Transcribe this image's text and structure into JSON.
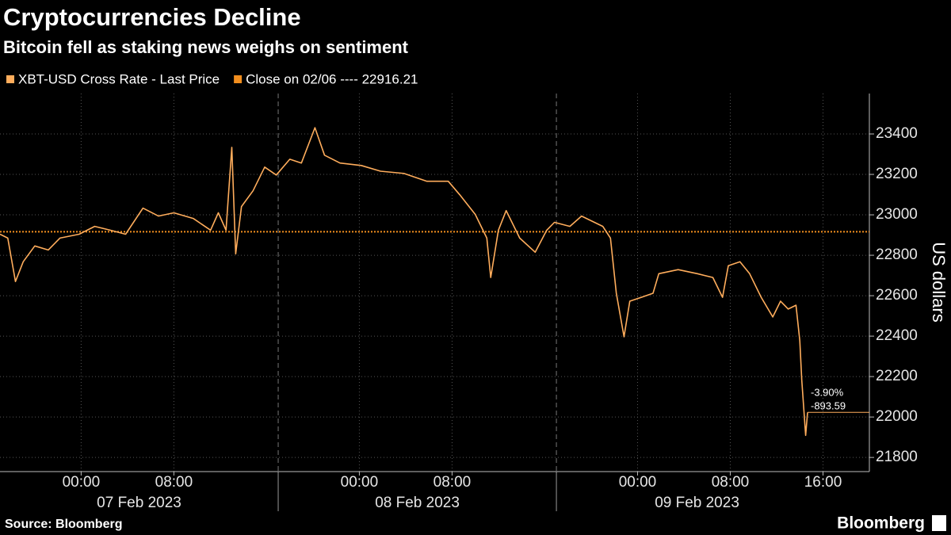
{
  "chart_data": {
    "type": "line",
    "title": "Cryptocurrencies Decline",
    "subtitle": "Bitcoin fell as staking news weighs on sentiment",
    "y_axis_label": "US dollars",
    "source": "Source: Bloomberg",
    "brand": "Bloomberg",
    "x": [
      "2023-02-06T17:00",
      "2023-02-06T17:40",
      "2023-02-06T18:20",
      "2023-02-06T19:00",
      "2023-02-06T20:00",
      "2023-02-06T21:10",
      "2023-02-06T22:10",
      "2023-02-06T23:50",
      "2023-02-07T01:10",
      "2023-02-07T02:30",
      "2023-02-07T03:50",
      "2023-02-07T05:20",
      "2023-02-07T06:40",
      "2023-02-07T08:00",
      "2023-02-07T09:40",
      "2023-02-07T11:10",
      "2023-02-07T11:50",
      "2023-02-07T12:30",
      "2023-02-07T13:00",
      "2023-02-07T13:20",
      "2023-02-07T13:50",
      "2023-02-07T14:50",
      "2023-02-07T15:50",
      "2023-02-07T16:50",
      "2023-02-07T18:00",
      "2023-02-07T19:00",
      "2023-02-07T20:10",
      "2023-02-07T21:00",
      "2023-02-07T22:20",
      "2023-02-08T00:10",
      "2023-02-08T01:50",
      "2023-02-08T03:50",
      "2023-02-08T05:50",
      "2023-02-08T07:40",
      "2023-02-08T08:40",
      "2023-02-08T10:00",
      "2023-02-08T11:00",
      "2023-02-08T11:20",
      "2023-02-08T12:00",
      "2023-02-08T12:40",
      "2023-02-08T13:50",
      "2023-02-08T15:10",
      "2023-02-08T16:10",
      "2023-02-08T16:50",
      "2023-02-08T18:10",
      "2023-02-08T19:10",
      "2023-02-08T21:00",
      "2023-02-08T21:40",
      "2023-02-08T22:10",
      "2023-02-08T22:50",
      "2023-02-08T23:20",
      "2023-02-09T00:20",
      "2023-02-09T01:20",
      "2023-02-09T01:50",
      "2023-02-09T03:30",
      "2023-02-09T05:10",
      "2023-02-09T06:30",
      "2023-02-09T07:20",
      "2023-02-09T07:50",
      "2023-02-09T08:50",
      "2023-02-09T09:40",
      "2023-02-09T10:40",
      "2023-02-09T11:40",
      "2023-02-09T12:20",
      "2023-02-09T13:00",
      "2023-02-09T13:40",
      "2023-02-09T14:00",
      "2023-02-09T14:10",
      "2023-02-09T14:30",
      "2023-02-09T14:40"
    ],
    "series": [
      {
        "name": "XBT-USD Cross Rate - Last Price",
        "color": "#ffad5c",
        "values": [
          22904,
          22885,
          22670,
          22768,
          22846,
          22826,
          22885,
          22904,
          22943,
          22924,
          22904,
          23033,
          22994,
          23010,
          22982,
          22924,
          23010,
          22924,
          23334,
          22807,
          23041,
          23119,
          23236,
          23197,
          23275,
          23256,
          23431,
          23295,
          23256,
          23244,
          23216,
          23205,
          23166,
          23166,
          23099,
          23002,
          22885,
          22690,
          22924,
          23021,
          22885,
          22815,
          22924,
          22963,
          22943,
          22994,
          22943,
          22885,
          22612,
          22397,
          22573,
          22592,
          22612,
          22709,
          22729,
          22709,
          22690,
          22592,
          22748,
          22768,
          22709,
          22592,
          22495,
          22573,
          22534,
          22553,
          22378,
          22182,
          21909,
          22023
        ]
      }
    ],
    "reference_line": {
      "name": "Close on 02/06 ---- 22916.21",
      "value": 22916.21,
      "color": "#f28e1e"
    },
    "annotations": [
      "-3.90%",
      "-893.59"
    ],
    "xlim": [
      "2023-02-06T17:00",
      "2023-02-09T20:00"
    ],
    "xticks": [
      {
        "value": "2023-02-07T00:00",
        "label": "00:00"
      },
      {
        "value": "2023-02-07T08:00",
        "label": "08:00"
      },
      {
        "value": "2023-02-08T00:00",
        "label": "00:00"
      },
      {
        "value": "2023-02-08T08:00",
        "label": "08:00"
      },
      {
        "value": "2023-02-09T00:00",
        "label": "00:00"
      },
      {
        "value": "2023-02-09T08:00",
        "label": "08:00"
      },
      {
        "value": "2023-02-09T16:00",
        "label": "16:00"
      }
    ],
    "date_labels": [
      "07 Feb 2023",
      "08 Feb 2023",
      "09 Feb 2023"
    ],
    "x_separators": [
      "2023-02-07T17:00",
      "2023-02-08T17:00"
    ],
    "ylim": [
      21730,
      23600
    ],
    "yticks": [
      21800,
      22000,
      22200,
      22400,
      22600,
      22800,
      23000,
      23200,
      23400
    ],
    "grid": true
  }
}
